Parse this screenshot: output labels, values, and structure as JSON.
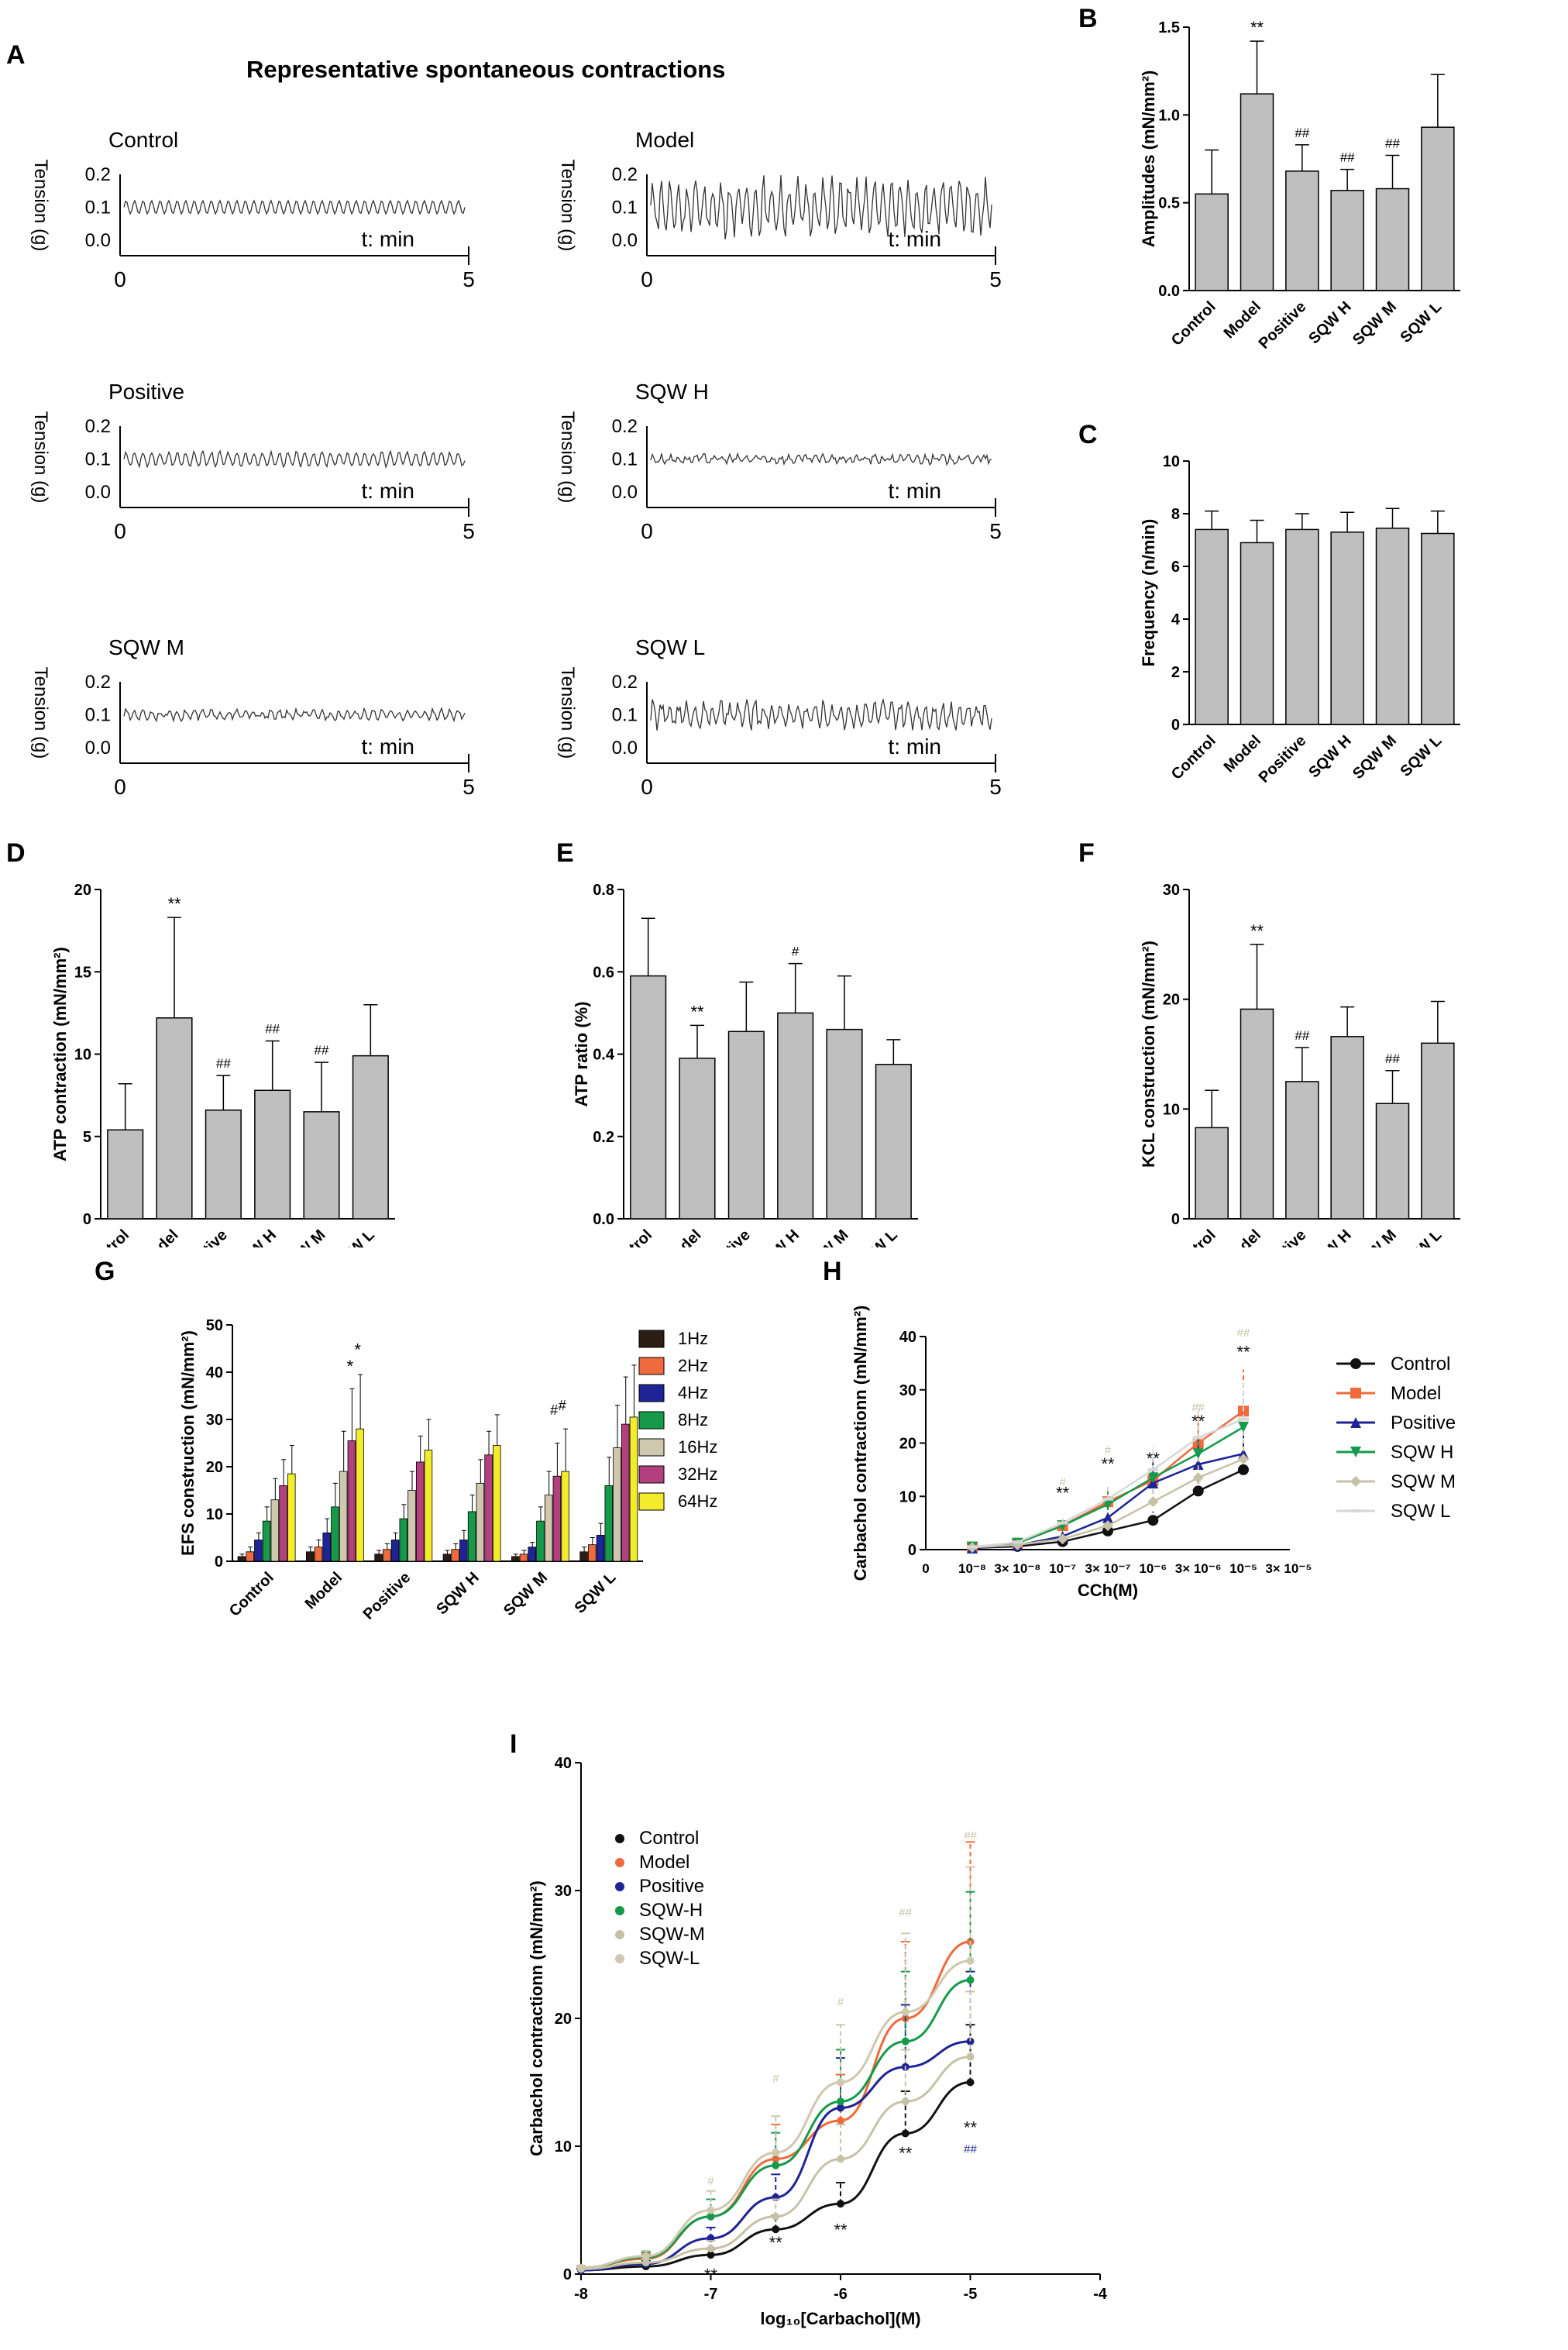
{
  "panel_labels": {
    "A": "A",
    "B": "B",
    "C": "C",
    "D": "D",
    "E": "E",
    "F": "F",
    "G": "G",
    "H": "H",
    "I": "I"
  },
  "traces": {
    "title": "Representative spontaneous contractions",
    "ylabel": "Tension (g)",
    "xlabel": "t: min",
    "yticks": [
      "0.2",
      "0.1",
      "0.0"
    ],
    "x_start": "0",
    "x_end": "5",
    "groups": [
      {
        "name": "Control",
        "amp": 0.02,
        "noise": 0.0,
        "base": 0.1
      },
      {
        "name": "Model",
        "amp": 0.07,
        "noise": 0.03,
        "base": 0.1
      },
      {
        "name": "Positive",
        "amp": 0.02,
        "noise": 0.005,
        "base": 0.1
      },
      {
        "name": "SQW H",
        "amp": 0.008,
        "noise": 0.01,
        "base": 0.1
      },
      {
        "name": "SQW M",
        "amp": 0.012,
        "noise": 0.008,
        "base": 0.1
      },
      {
        "name": "SQW L",
        "amp": 0.03,
        "noise": 0.02,
        "base": 0.1
      }
    ]
  },
  "chart_data": [
    {
      "id": "B",
      "type": "bar",
      "categories": [
        "Control",
        "Model",
        "Positive",
        "SQW H",
        "SQW M",
        "SQW L"
      ],
      "values": [
        0.55,
        1.12,
        0.68,
        0.57,
        0.58,
        0.93
      ],
      "errors": [
        0.25,
        0.3,
        0.15,
        0.12,
        0.19,
        0.3
      ],
      "annotations": [
        "",
        "**",
        "##",
        "##",
        "##",
        ""
      ],
      "ylabel": "Amplitudes (mN/mm²)",
      "ylim": [
        0,
        1.5
      ],
      "yticks": [
        "0.0",
        "0.5",
        "1.0",
        "1.5"
      ]
    },
    {
      "id": "C",
      "type": "bar",
      "categories": [
        "Control",
        "Model",
        "Positive",
        "SQW H",
        "SQW M",
        "SQW L"
      ],
      "values": [
        7.4,
        6.9,
        7.4,
        7.3,
        7.45,
        7.25
      ],
      "errors": [
        0.7,
        0.85,
        0.6,
        0.75,
        0.75,
        0.85
      ],
      "annotations": [
        "",
        "",
        "",
        "",
        "",
        ""
      ],
      "ylabel": "Frequency (n/min)",
      "ylim": [
        0,
        10
      ],
      "yticks": [
        "0",
        "2",
        "4",
        "6",
        "8",
        "10"
      ]
    },
    {
      "id": "D",
      "type": "bar",
      "categories": [
        "Control",
        "Model",
        "Positive",
        "SQW H",
        "SQW M",
        "SQW L"
      ],
      "values": [
        5.4,
        12.2,
        6.6,
        7.8,
        6.5,
        9.9
      ],
      "errors": [
        2.8,
        6.1,
        2.1,
        3.0,
        3.0,
        3.1
      ],
      "annotations": [
        "",
        "**",
        "##",
        "##",
        "##",
        ""
      ],
      "ylabel": "ATP contraction (mN/mm²)",
      "ylim": [
        0,
        20
      ],
      "yticks": [
        "0",
        "5",
        "10",
        "15",
        "20"
      ]
    },
    {
      "id": "E",
      "type": "bar",
      "categories": [
        "Control",
        "Model",
        "Positive",
        "SQW H",
        "SQW M",
        "SQW L"
      ],
      "values": [
        0.59,
        0.39,
        0.455,
        0.5,
        0.46,
        0.375
      ],
      "errors": [
        0.14,
        0.08,
        0.12,
        0.12,
        0.13,
        0.06
      ],
      "annotations": [
        "",
        "**",
        "",
        "#",
        "",
        ""
      ],
      "ylabel": "ATP ratio (%)",
      "ylim": [
        0,
        0.8
      ],
      "yticks": [
        "0.0",
        "0.2",
        "0.4",
        "0.6",
        "0.8"
      ]
    },
    {
      "id": "F",
      "type": "bar",
      "categories": [
        "Control",
        "Model",
        "Positive",
        "SQW H",
        "SQW M",
        "SQW L"
      ],
      "values": [
        8.3,
        19.1,
        12.5,
        16.6,
        10.5,
        16.0
      ],
      "errors": [
        3.4,
        5.9,
        3.1,
        2.7,
        3.0,
        3.8
      ],
      "annotations": [
        "",
        "**",
        "##",
        "",
        "##",
        ""
      ],
      "ylabel": "KCL construction (mN/mm²)",
      "ylim": [
        0,
        30
      ],
      "yticks": [
        "0",
        "10",
        "20",
        "30"
      ]
    },
    {
      "id": "G",
      "type": "bar",
      "categories": [
        "Control",
        "Model",
        "Positive",
        "SQW H",
        "SQW M",
        "SQW L"
      ],
      "ylabel": "EFS construction (mN/mm²)",
      "ylim": [
        0,
        50
      ],
      "yticks": [
        "0",
        "10",
        "20",
        "30",
        "40",
        "50"
      ],
      "series": [
        {
          "name": "1Hz",
          "color": "#2a1d14",
          "values": [
            1.0,
            2.0,
            1.5,
            1.5,
            1.0,
            2.0
          ],
          "errors": [
            0.5,
            1.0,
            0.8,
            0.8,
            0.5,
            1.0
          ]
        },
        {
          "name": "2Hz",
          "color": "#ef6a3c",
          "values": [
            2.0,
            3.0,
            2.5,
            2.5,
            1.5,
            3.5
          ],
          "errors": [
            1.0,
            1.5,
            1.2,
            1.2,
            0.8,
            1.5
          ]
        },
        {
          "name": "4Hz",
          "color": "#1e2496",
          "values": [
            4.5,
            6.0,
            4.5,
            4.5,
            3.0,
            5.5
          ],
          "errors": [
            1.5,
            3.0,
            1.5,
            2.0,
            1.0,
            2.5
          ]
        },
        {
          "name": "8Hz",
          "color": "#159a4a",
          "values": [
            8.5,
            11.5,
            9.0,
            10.5,
            8.5,
            16.0
          ],
          "errors": [
            3.0,
            5.0,
            3.0,
            3.5,
            3.0,
            6.0
          ]
        },
        {
          "name": "16Hz",
          "color": "#cfc7ae",
          "values": [
            13.0,
            19.0,
            15.0,
            16.5,
            14.0,
            24.0
          ],
          "errors": [
            4.5,
            8.5,
            4.0,
            5.0,
            5.0,
            9.0
          ]
        },
        {
          "name": "32Hz",
          "color": "#b23f7e",
          "values": [
            16.0,
            25.5,
            21.0,
            22.5,
            18.0,
            29.0
          ],
          "errors": [
            5.5,
            11.0,
            5.5,
            5.0,
            7.0,
            10.0
          ]
        },
        {
          "name": "64Hz",
          "color": "#f3ec2b",
          "values": [
            18.5,
            28.0,
            23.5,
            24.5,
            19.0,
            30.5
          ],
          "errors": [
            6.0,
            11.5,
            6.5,
            6.5,
            9.0,
            11.0
          ]
        }
      ],
      "annotations": [
        {
          "group": "Model",
          "text": "*"
        },
        {
          "group": "Model",
          "text": "*"
        },
        {
          "group": "SQW M",
          "text": "#"
        },
        {
          "group": "SQW M",
          "text": "#"
        }
      ]
    },
    {
      "id": "H",
      "type": "line",
      "xlabel": "CCh(M)",
      "ylabel": "Carbachol contractionn (mN/mm²)",
      "ylim": [
        0,
        40
      ],
      "yticks": [
        "0",
        "10",
        "20",
        "30",
        "40"
      ],
      "x_labels": [
        "0",
        "10⁻⁸",
        "3× 10⁻⁸",
        "10⁻⁷",
        "3× 10⁻⁷",
        "10⁻⁶",
        "3× 10⁻⁶",
        "10⁻⁵",
        "3× 10⁻⁵"
      ],
      "x_log": [
        -8,
        -7.5,
        -7,
        -6.5,
        -6,
        -5.5,
        -5
      ],
      "series": [
        {
          "name": "Control",
          "color": "#111111",
          "marker": "circle",
          "values": [
            0.3,
            0.6,
            1.5,
            3.5,
            5.5,
            11,
            15
          ]
        },
        {
          "name": "Model",
          "color": "#ef6a3c",
          "marker": "square",
          "values": [
            0.5,
            1.2,
            4.5,
            9,
            13,
            20,
            26
          ]
        },
        {
          "name": "Positive",
          "color": "#1e2496",
          "marker": "triangle",
          "values": [
            0.3,
            0.8,
            2.5,
            6,
            12.5,
            16,
            18
          ]
        },
        {
          "name": "SQW H",
          "color": "#159a4a",
          "marker": "tri-down",
          "values": [
            0.5,
            1.2,
            4.5,
            8.5,
            13.5,
            18,
            23
          ]
        },
        {
          "name": "SQW M",
          "color": "#c6c2a6",
          "marker": "diamond",
          "values": [
            0.4,
            0.9,
            2,
            4.5,
            9,
            13.5,
            17
          ]
        },
        {
          "name": "SQW L",
          "color": "#d7d7d7",
          "marker": "line",
          "values": [
            0.5,
            1.4,
            5,
            9.5,
            15,
            21,
            24.5
          ]
        }
      ],
      "annotations": [
        "#",
        "**",
        "#",
        "**",
        "**",
        "##",
        "**",
        "##",
        "**"
      ]
    },
    {
      "id": "I",
      "type": "line",
      "xlabel": "log₁₀[Carbachol](M)",
      "ylabel": "Carbachol contractionn (mN/mm²)",
      "xlim": [
        -8,
        -4
      ],
      "ylim": [
        0,
        40
      ],
      "xticks": [
        "-8",
        "-7",
        "-6",
        "-5",
        "-4"
      ],
      "yticks": [
        "0",
        "10",
        "20",
        "30",
        "40"
      ],
      "x": [
        -8,
        -7.5,
        -7,
        -6.5,
        -6,
        -5.5,
        -5
      ],
      "series": [
        {
          "name": "Control",
          "color": "#111111",
          "values": [
            0.3,
            0.6,
            1.5,
            3.5,
            5.5,
            11,
            15
          ]
        },
        {
          "name": "Model",
          "color": "#ef6a3c",
          "values": [
            0.5,
            1.2,
            4.5,
            9,
            12,
            20,
            26
          ]
        },
        {
          "name": "Positive",
          "color": "#1e2496",
          "values": [
            0.3,
            0.8,
            2.8,
            6,
            13,
            16.2,
            18.2
          ]
        },
        {
          "name": "SQW-H",
          "color": "#159a4a",
          "values": [
            0.5,
            1.3,
            4.5,
            8.5,
            13.5,
            18.2,
            23
          ]
        },
        {
          "name": "SQW-M",
          "color": "#c6c2a6",
          "values": [
            0.4,
            0.9,
            2,
            4.5,
            9,
            13.5,
            17
          ]
        },
        {
          "name": "SQW-L",
          "color": "#cfc7ae",
          "values": [
            0.5,
            1.4,
            5,
            9.5,
            15,
            20.5,
            24.5
          ]
        }
      ],
      "annotations": [
        "#",
        "**",
        "#",
        "**",
        "#",
        "**",
        "##",
        "**",
        "##",
        "**",
        "##"
      ]
    }
  ]
}
